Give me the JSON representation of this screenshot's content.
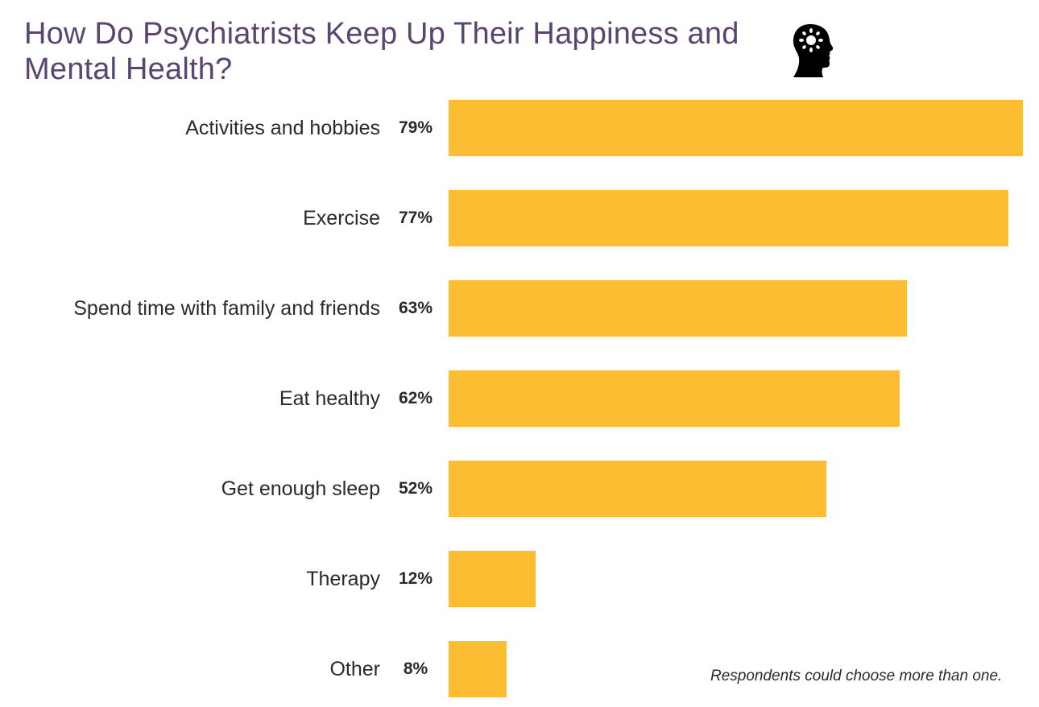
{
  "header": {
    "title": "How Do Psychiatrists Keep Up Their Happiness and Mental Health?",
    "icon": "head-with-sun-icon"
  },
  "colors": {
    "title": "#5b4470",
    "bar": "#fdbd32",
    "text": "#2a2a2a"
  },
  "footnote": "Respondents could choose more than one.",
  "chart_data": {
    "type": "bar",
    "orientation": "horizontal",
    "title": "How Do Psychiatrists Keep Up Their Happiness and Mental Health?",
    "xlabel": "",
    "ylabel": "",
    "categories": [
      "Activities and hobbies",
      "Exercise",
      "Spend time with family and friends",
      "Eat healthy",
      "Get enough sleep",
      "Therapy",
      "Other"
    ],
    "values": [
      79,
      77,
      63,
      62,
      52,
      12,
      8
    ],
    "value_labels": [
      "79%",
      "77%",
      "63%",
      "62%",
      "52%",
      "12%",
      "8%"
    ],
    "unit": "%",
    "xlim": [
      0,
      79
    ],
    "grid": false,
    "legend": null,
    "annotations": [
      "Respondents could choose more than one."
    ]
  }
}
